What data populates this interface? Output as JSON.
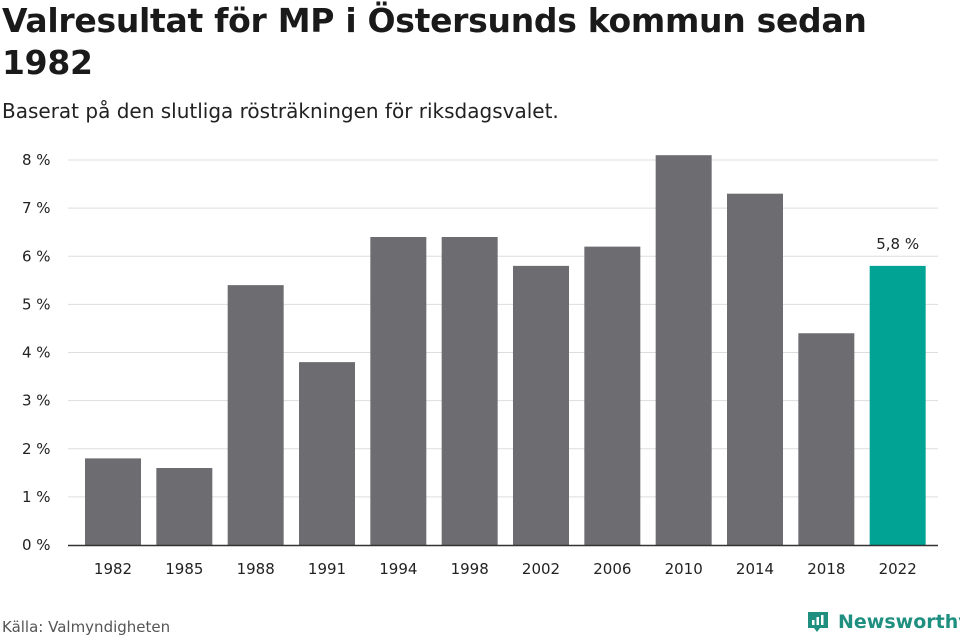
{
  "header": {
    "title": "Valresultat för MP i Östersunds kommun sedan 1982",
    "subtitle": "Baserat på den slutliga rösträkningen för riksdagsvalet."
  },
  "footer": {
    "source": "Källa: Valmyndigheten",
    "brand": "Newsworthy"
  },
  "colors": {
    "bar": "#6d6c71",
    "highlight": "#00a394",
    "grid": "#dddddd",
    "axis": "#333333",
    "brand": "#1f8f80"
  },
  "chart_data": {
    "type": "bar",
    "title": "Valresultat för MP i Östersunds kommun sedan 1982",
    "xlabel": "",
    "ylabel": "",
    "categories": [
      "1982",
      "1985",
      "1988",
      "1991",
      "1994",
      "1998",
      "2002",
      "2006",
      "2010",
      "2014",
      "2018",
      "2022"
    ],
    "values": [
      1.8,
      1.6,
      5.4,
      3.8,
      6.4,
      6.4,
      5.8,
      6.2,
      8.1,
      7.3,
      4.4,
      5.8
    ],
    "ylim": [
      0,
      8
    ],
    "yticks": [
      "0 %",
      "1 %",
      "2 %",
      "3 %",
      "4 %",
      "5 %",
      "6 %",
      "7 %",
      "8 %"
    ],
    "highlight_index": 11,
    "highlight_label": "5,8 %",
    "grid": true,
    "legend": "none"
  }
}
